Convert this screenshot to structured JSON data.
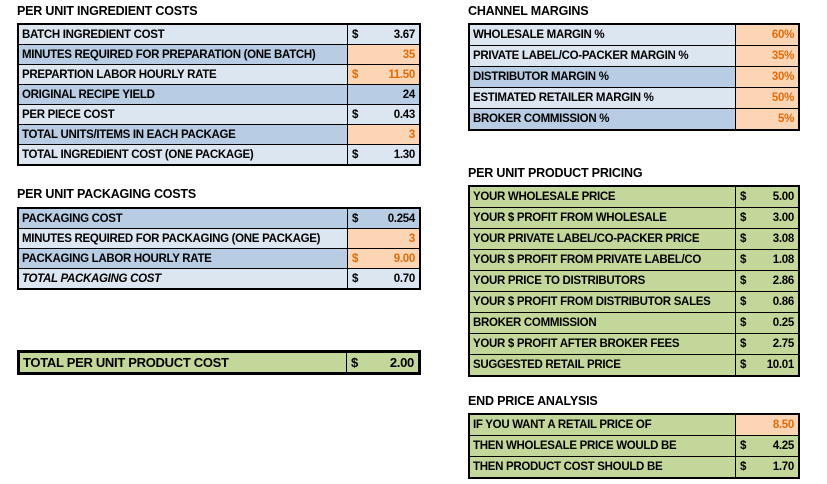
{
  "palette": {
    "page_bg": "#FFFFFF",
    "light_blue": "#DCE6F1",
    "medium_blue": "#B8CCE4",
    "orange_fill": "#FCD5B4",
    "orange_text": "#E26B0A",
    "green": "#C4D79B",
    "border": "#000000",
    "text": "#000000"
  },
  "tables": {
    "ingredient_costs": {
      "title": "PER UNIT INGREDIENT COSTS",
      "rows": [
        {
          "label": "BATCH INGREDIENT COST",
          "currency": "$",
          "value": "3.67",
          "label_bg": "light_blue",
          "value_bg": "light_blue",
          "value_color": "text"
        },
        {
          "label": "MINUTES REQUIRED FOR PREPARATION (ONE BATCH)",
          "value": "35",
          "label_bg": "medium_blue",
          "value_bg": "orange_fill",
          "value_color": "orange_text"
        },
        {
          "label": "PREPARTION LABOR HOURLY RATE",
          "currency": "$",
          "value": "11.50",
          "label_bg": "light_blue",
          "value_bg": "orange_fill",
          "value_color": "orange_text"
        },
        {
          "label": "ORIGINAL RECIPE YIELD",
          "value": "24",
          "label_bg": "medium_blue",
          "value_bg": "medium_blue",
          "value_color": "text"
        },
        {
          "label": "PER PIECE COST",
          "currency": "$",
          "value": "0.43",
          "label_bg": "light_blue",
          "value_bg": "light_blue",
          "value_color": "text"
        },
        {
          "label": "TOTAL UNITS/ITEMS IN EACH PACKAGE",
          "value": "3",
          "label_bg": "medium_blue",
          "value_bg": "orange_fill",
          "value_color": "orange_text"
        },
        {
          "label": "TOTAL INGREDIENT COST (ONE PACKAGE)",
          "currency": "$",
          "value": "1.30",
          "label_bg": "light_blue",
          "value_bg": "light_blue",
          "value_color": "text"
        }
      ]
    },
    "packaging_costs": {
      "title": "PER UNIT PACKAGING COSTS",
      "rows": [
        {
          "label": "PACKAGING COST",
          "currency": "$",
          "value": "0.254",
          "label_bg": "medium_blue",
          "value_bg": "medium_blue",
          "value_color": "text"
        },
        {
          "label": "MINUTES REQUIRED FOR PACKAGING (ONE PACKAGE)",
          "value": "3",
          "label_bg": "light_blue",
          "value_bg": "orange_fill",
          "value_color": "orange_text"
        },
        {
          "label": "PACKAGING LABOR HOURLY RATE",
          "currency": "$",
          "value": "9.00",
          "label_bg": "medium_blue",
          "value_bg": "orange_fill",
          "value_color": "orange_text"
        },
        {
          "label": "TOTAL PACKAGING COST",
          "currency": "$",
          "value": "0.70",
          "label_bg": "light_blue",
          "value_bg": "light_blue",
          "value_color": "text",
          "italic": true
        }
      ]
    },
    "total_cost": {
      "title": "",
      "rows": [
        {
          "label": "TOTAL PER UNIT PRODUCT COST",
          "currency": "$",
          "value": "2.00",
          "label_bg": "green",
          "value_bg": "green",
          "value_color": "text"
        }
      ]
    },
    "channel_margins": {
      "title": "CHANNEL MARGINS",
      "rows": [
        {
          "label": "WHOLESALE MARGIN %",
          "value": "60%",
          "label_bg": "light_blue",
          "value_bg": "orange_fill",
          "value_color": "orange_text"
        },
        {
          "label": "PRIVATE LABEL/CO-PACKER MARGIN %",
          "value": "35%",
          "label_bg": "light_blue",
          "value_bg": "orange_fill",
          "value_color": "orange_text"
        },
        {
          "label": "DISTRIBUTOR MARGIN %",
          "value": "30%",
          "label_bg": "medium_blue",
          "value_bg": "orange_fill",
          "value_color": "orange_text"
        },
        {
          "label": "ESTIMATED RETAILER MARGIN %",
          "value": "50%",
          "label_bg": "light_blue",
          "value_bg": "orange_fill",
          "value_color": "orange_text"
        },
        {
          "label": "BROKER COMMISSION %",
          "value": "5%",
          "label_bg": "medium_blue",
          "value_bg": "orange_fill",
          "value_color": "orange_text"
        }
      ]
    },
    "product_pricing": {
      "title": "PER UNIT PRODUCT PRICING",
      "rows": [
        {
          "label": "YOUR WHOLESALE PRICE",
          "currency": "$",
          "value": "5.00",
          "label_bg": "green",
          "value_bg": "green",
          "value_color": "text"
        },
        {
          "label": "YOUR $ PROFIT FROM WHOLESALE",
          "currency": "$",
          "value": "3.00",
          "label_bg": "green",
          "value_bg": "green",
          "value_color": "text"
        },
        {
          "label": "YOUR PRIVATE LABEL/CO-PACKER PRICE",
          "currency": "$",
          "value": "3.08",
          "label_bg": "green",
          "value_bg": "green",
          "value_color": "text"
        },
        {
          "label": "YOUR $ PROFIT FROM PRIVATE LABEL/CO",
          "currency": "$",
          "value": "1.08",
          "label_bg": "green",
          "value_bg": "green",
          "value_color": "text"
        },
        {
          "label": "YOUR PRICE TO DISTRIBUTORS",
          "currency": "$",
          "value": "2.86",
          "label_bg": "green",
          "value_bg": "green",
          "value_color": "text"
        },
        {
          "label": "YOUR $ PROFIT FROM DISTRIBUTOR SALES",
          "currency": "$",
          "value": "0.86",
          "label_bg": "green",
          "value_bg": "green",
          "value_color": "text"
        },
        {
          "label": "BROKER COMMISSION",
          "currency": "$",
          "value": "0.25",
          "label_bg": "green",
          "value_bg": "green",
          "value_color": "text"
        },
        {
          "label": "YOUR $ PROFIT AFTER BROKER FEES",
          "currency": "$",
          "value": "2.75",
          "label_bg": "green",
          "value_bg": "green",
          "value_color": "text"
        },
        {
          "label": "SUGGESTED RETAIL PRICE",
          "currency": "$",
          "value": "10.01",
          "label_bg": "green",
          "value_bg": "green",
          "value_color": "text"
        }
      ]
    },
    "end_price_analysis": {
      "title": "END PRICE ANALYSIS",
      "rows": [
        {
          "label": "IF YOU WANT A RETAIL PRICE OF",
          "value": "8.50",
          "label_bg": "green",
          "value_bg": "orange_fill",
          "value_color": "orange_text"
        },
        {
          "label": "THEN WHOLESALE PRICE WOULD BE",
          "currency": "$",
          "value": "4.25",
          "label_bg": "green",
          "value_bg": "green",
          "value_color": "text"
        },
        {
          "label": "THEN PRODUCT COST SHOULD BE",
          "currency": "$",
          "value": "1.70",
          "label_bg": "green",
          "value_bg": "green",
          "value_color": "text"
        }
      ]
    }
  }
}
